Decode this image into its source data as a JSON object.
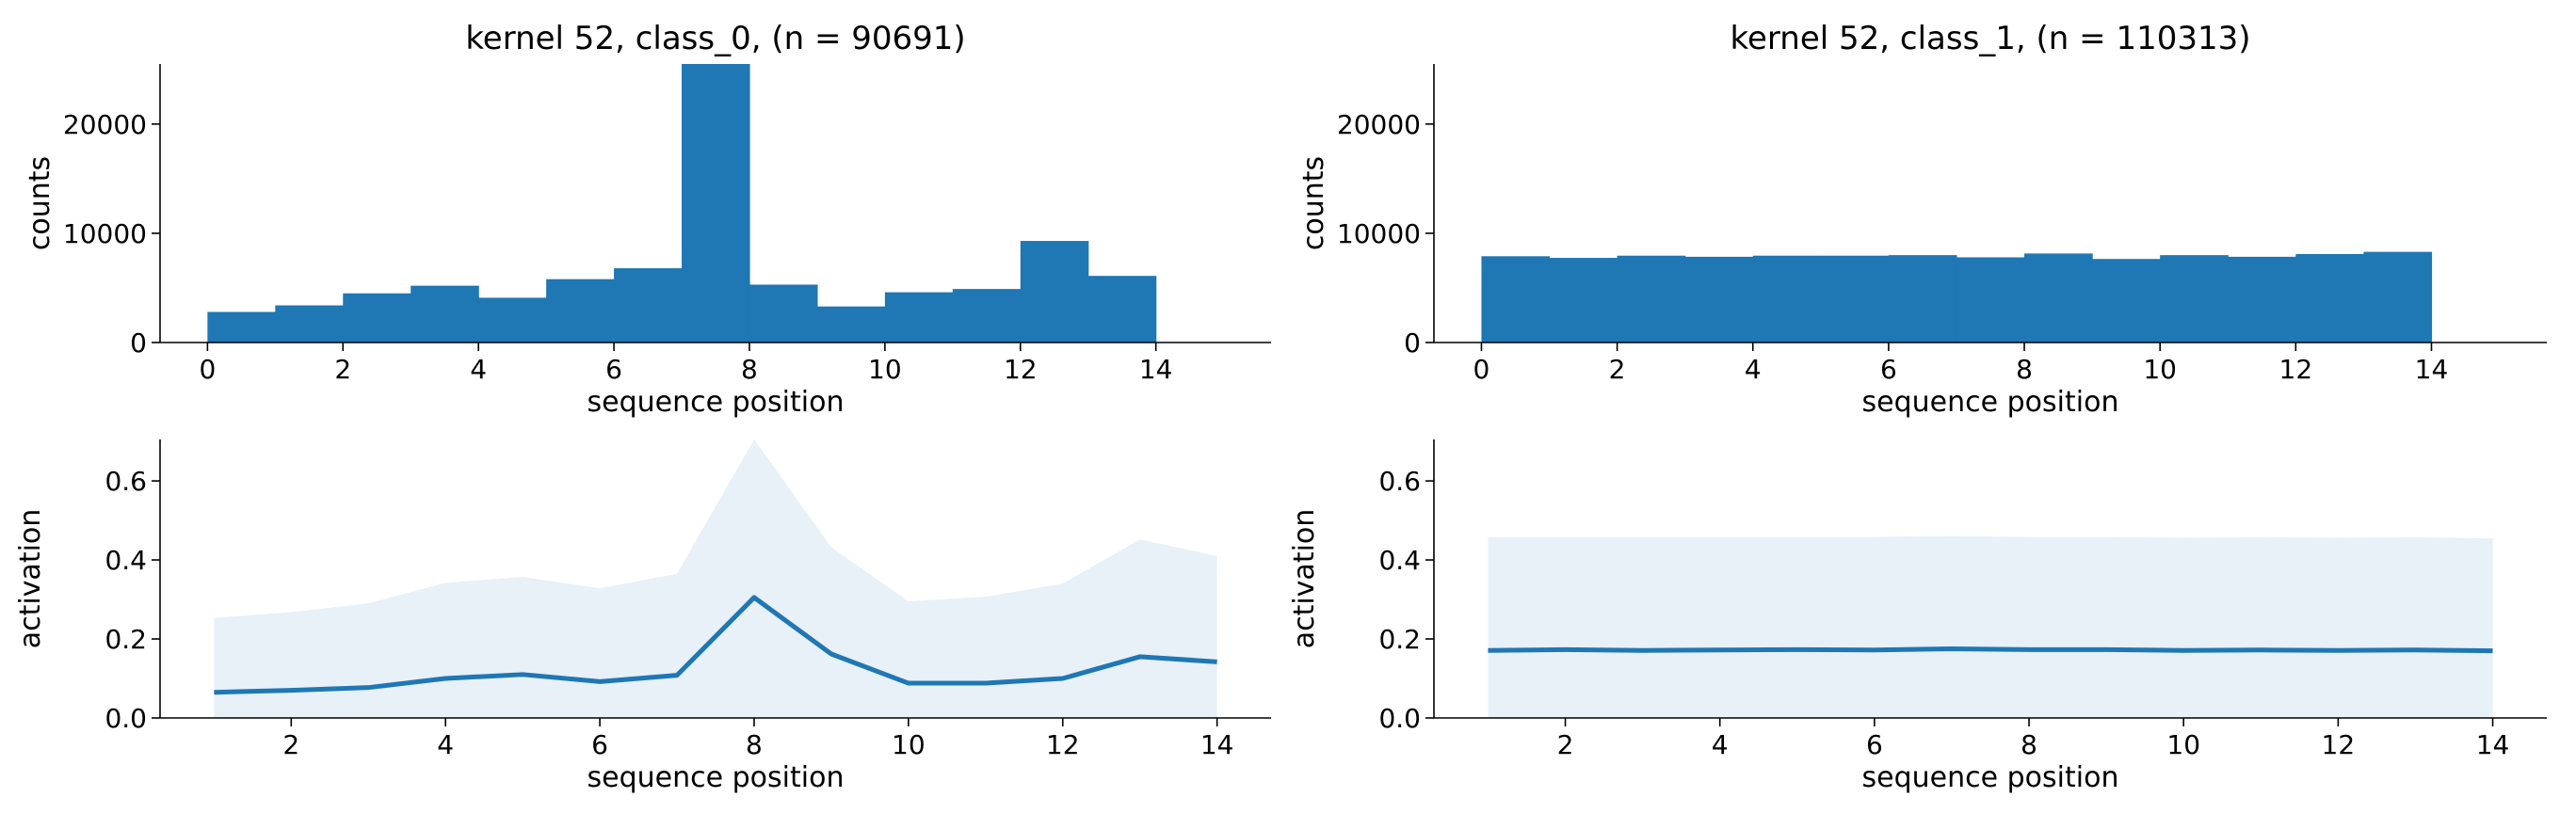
{
  "chart_data": [
    {
      "id": "hist-class0",
      "type": "bar",
      "title": "kernel 52, class_0, (n = 90691)",
      "xlabel": "sequence position",
      "ylabel": "counts",
      "bin_edges": [
        0,
        1,
        2,
        3,
        4,
        5,
        6,
        7,
        8,
        9,
        10,
        11,
        12,
        13,
        14
      ],
      "values": [
        2800,
        3400,
        4500,
        5200,
        4100,
        5800,
        6800,
        25500,
        5300,
        3300,
        4600,
        4900,
        9300,
        6100
      ],
      "xlim": [
        -0.7,
        15.7
      ],
      "ylim": [
        0,
        25500
      ],
      "xticks": [
        0,
        2,
        4,
        6,
        8,
        10,
        12,
        14
      ],
      "yticks": [
        0,
        10000,
        20000
      ],
      "color": "#1f77b4"
    },
    {
      "id": "hist-class1",
      "type": "bar",
      "title": "kernel 52, class_1, (n = 110313)",
      "xlabel": "sequence position",
      "ylabel": "counts",
      "bin_edges": [
        0,
        1,
        2,
        3,
        4,
        5,
        6,
        7,
        8,
        9,
        10,
        11,
        12,
        13,
        14
      ],
      "values": [
        7900,
        7750,
        7950,
        7850,
        7950,
        7950,
        8000,
        7800,
        8150,
        7650,
        8000,
        7850,
        8100,
        8300
      ],
      "xlim": [
        -0.7,
        15.7
      ],
      "ylim": [
        0,
        25500
      ],
      "xticks": [
        0,
        2,
        4,
        6,
        8,
        10,
        12,
        14
      ],
      "yticks": [
        0,
        10000,
        20000
      ],
      "color": "#1f77b4"
    },
    {
      "id": "line-class0",
      "type": "line",
      "title": "",
      "xlabel": "sequence position",
      "ylabel": "activation",
      "x": [
        1,
        2,
        3,
        4,
        5,
        6,
        7,
        8,
        9,
        10,
        11,
        12,
        13,
        14
      ],
      "series": [
        {
          "values": [
            0.065,
            0.07,
            0.077,
            0.1,
            0.11,
            0.092,
            0.108,
            0.305,
            0.162,
            0.088,
            0.088,
            0.1,
            0.155,
            0.142
          ],
          "upper": [
            0.253,
            0.268,
            0.29,
            0.342,
            0.357,
            0.328,
            0.365,
            0.705,
            0.432,
            0.295,
            0.307,
            0.34,
            0.452,
            0.41
          ]
        }
      ],
      "xlim": [
        0.3,
        14.7
      ],
      "ylim": [
        0,
        0.705
      ],
      "xticks": [
        2,
        4,
        6,
        8,
        10,
        12,
        14
      ],
      "yticks": [
        0.0,
        0.2,
        0.4,
        0.6
      ],
      "color": "#1f77b4",
      "band_color": "#e8f0f8"
    },
    {
      "id": "line-class1",
      "type": "line",
      "title": "",
      "xlabel": "sequence position",
      "ylabel": "activation",
      "x": [
        1,
        2,
        3,
        4,
        5,
        6,
        7,
        8,
        9,
        10,
        11,
        12,
        13,
        14
      ],
      "series": [
        {
          "values": [
            0.171,
            0.173,
            0.171,
            0.172,
            0.173,
            0.172,
            0.175,
            0.173,
            0.173,
            0.171,
            0.172,
            0.171,
            0.172,
            0.17
          ],
          "upper": [
            0.458,
            0.458,
            0.458,
            0.458,
            0.458,
            0.458,
            0.46,
            0.458,
            0.458,
            0.456,
            0.457,
            0.456,
            0.457,
            0.455
          ]
        }
      ],
      "xlim": [
        0.3,
        14.7
      ],
      "ylim": [
        0,
        0.705
      ],
      "xticks": [
        2,
        4,
        6,
        8,
        10,
        12,
        14
      ],
      "yticks": [
        0.0,
        0.2,
        0.4,
        0.6
      ],
      "color": "#1f77b4",
      "band_color": "#e8f0f8"
    }
  ]
}
